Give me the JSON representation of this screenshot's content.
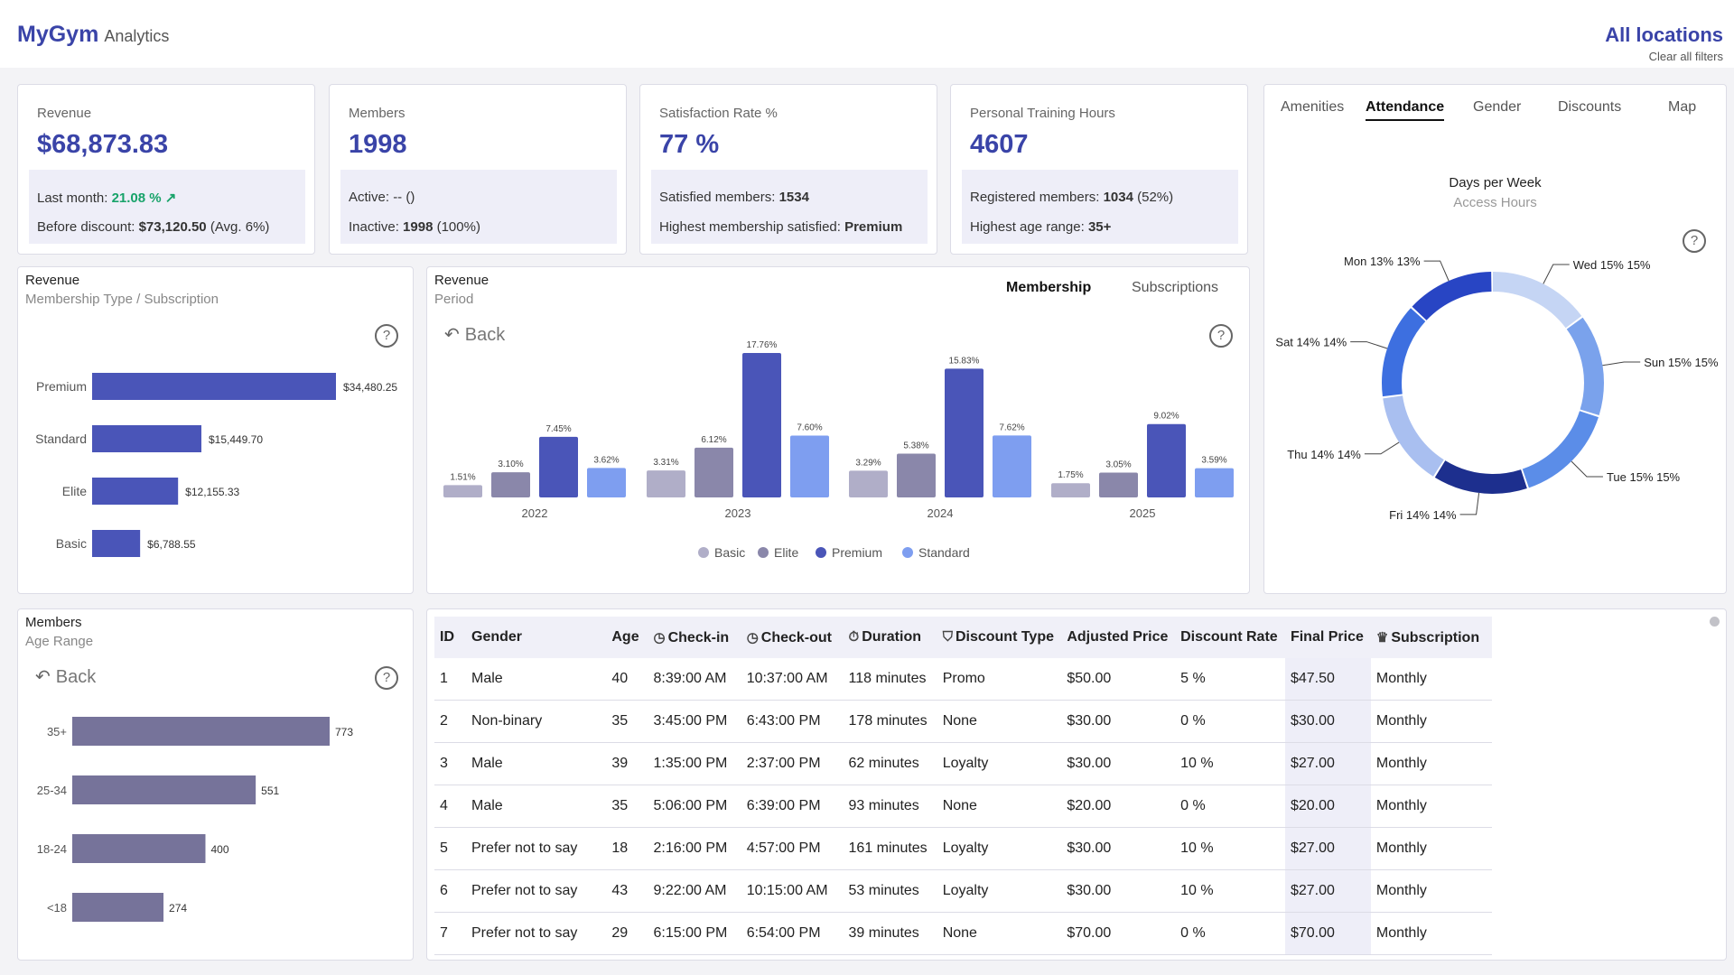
{
  "header": {
    "brand": "MyGym",
    "brand_sub": "Analytics",
    "location": "All locations",
    "clear_filters": "Clear all filters"
  },
  "kpis": {
    "revenue": {
      "label": "Revenue",
      "value": "$68,873.83",
      "last_month_label": "Last month:",
      "last_month_value": "21.08 %",
      "trend_icon": "arrow-up-right-icon",
      "before_discount_label": "Before discount:",
      "before_discount_value": "$73,120.50",
      "before_discount_avg": "(Avg. 6%)"
    },
    "members": {
      "label": "Members",
      "value": "1998",
      "active_label": "Active:",
      "active_value": "-- ()",
      "inactive_label": "Inactive:",
      "inactive_value": "1998",
      "inactive_pct": "(100%)"
    },
    "satisfaction": {
      "label": "Satisfaction Rate %",
      "value": "77 %",
      "satisfied_label": "Satisfied members:",
      "satisfied_value": "1534",
      "highest_label": "Highest membership satisfied:",
      "highest_value": "Premium"
    },
    "training": {
      "label": "Personal Training Hours",
      "value": "4607",
      "registered_label": "Registered members:",
      "registered_value": "1034",
      "registered_pct": "(52%)",
      "age_label": "Highest age range:",
      "age_value": "35+"
    }
  },
  "revenue_type_panel": {
    "title": "Revenue",
    "subtitle": "Membership Type / Subscription",
    "help": "?"
  },
  "revenue_period_panel": {
    "title": "Revenue",
    "subtitle": "Period",
    "back": "Back",
    "help": "?",
    "tabs": [
      "Membership",
      "Subscriptions"
    ],
    "active_tab": "Membership"
  },
  "members_age_panel": {
    "title": "Members",
    "subtitle": "Age Range",
    "back": "Back",
    "help": "?"
  },
  "side_panel": {
    "tabs": [
      "Amenities",
      "Attendance",
      "Gender",
      "Discounts",
      "Map"
    ],
    "active_tab": "Attendance",
    "chart_title": "Days per Week",
    "chart_subtitle": "Access Hours",
    "help": "?"
  },
  "colors": {
    "accent": "#3a44a8",
    "basic": "#b0aec8",
    "elite": "#8a87aa",
    "premium": "#4a55b8",
    "standard": "#7e9ef0",
    "age_bar": "#76739a",
    "green": "#18a36a"
  },
  "chart_data": [
    {
      "type": "bar",
      "orientation": "horizontal",
      "title": "Revenue",
      "subtitle": "Membership Type / Subscription",
      "categories": [
        "Premium",
        "Standard",
        "Elite",
        "Basic"
      ],
      "values": [
        34480.25,
        15449.7,
        12155.33,
        6788.55
      ],
      "value_labels": [
        "$34,480.25",
        "$15,449.70",
        "$12,155.33",
        "$6,788.55"
      ]
    },
    {
      "type": "bar",
      "title": "Revenue",
      "subtitle": "Period",
      "categories": [
        "2022",
        "2023",
        "2024",
        "2025"
      ],
      "series": [
        {
          "name": "Basic",
          "values": [
            1.51,
            3.31,
            3.29,
            1.75
          ],
          "labels": [
            "1.51%",
            "3.31%",
            "3.29%",
            "1.75%"
          ]
        },
        {
          "name": "Elite",
          "values": [
            3.1,
            6.12,
            5.38,
            3.05
          ],
          "labels": [
            "3.10%",
            "6.12%",
            "5.38%",
            "3.05%"
          ]
        },
        {
          "name": "Premium",
          "values": [
            7.45,
            17.76,
            15.83,
            9.02
          ],
          "labels": [
            "7.45%",
            "17.76%",
            "15.83%",
            "9.02%"
          ]
        },
        {
          "name": "Standard",
          "values": [
            3.62,
            7.6,
            7.62,
            3.59
          ],
          "labels": [
            "3.62%",
            "7.60%",
            "7.62%",
            "3.59%"
          ]
        }
      ],
      "legend": "bottom"
    },
    {
      "type": "bar",
      "orientation": "horizontal",
      "title": "Members",
      "subtitle": "Age Range",
      "categories": [
        "35+",
        "25-34",
        "18-24",
        "<18"
      ],
      "values": [
        773,
        551,
        400,
        274
      ]
    },
    {
      "type": "pie",
      "donut": true,
      "title": "Days per Week",
      "subtitle": "Access Hours",
      "slices": [
        {
          "label": "Wed 15% 15%",
          "value": 15
        },
        {
          "label": "Sun 15% 15%",
          "value": 15
        },
        {
          "label": "Tue 15% 15%",
          "value": 15
        },
        {
          "label": "Fri 14% 14%",
          "value": 14
        },
        {
          "label": "Thu 14% 14%",
          "value": 14
        },
        {
          "label": "Sat 14% 14%",
          "value": 14
        },
        {
          "label": "Mon 13% 13%",
          "value": 13
        }
      ]
    }
  ],
  "table": {
    "headers": [
      {
        "label": "ID",
        "icon": ""
      },
      {
        "label": "Gender",
        "icon": ""
      },
      {
        "label": "Age",
        "icon": ""
      },
      {
        "label": "Check-in",
        "icon": "clock-icon"
      },
      {
        "label": "Check-out",
        "icon": "clock-icon"
      },
      {
        "label": "Duration",
        "icon": "stopwatch-icon"
      },
      {
        "label": "Discount Type",
        "icon": "shield-icon"
      },
      {
        "label": "Adjusted Price",
        "icon": ""
      },
      {
        "label": "Discount Rate",
        "icon": ""
      },
      {
        "label": "Final Price",
        "icon": ""
      },
      {
        "label": "Subscription",
        "icon": "subscription-icon"
      }
    ],
    "sort_indicator": "▲",
    "rows": [
      [
        "1",
        "Male",
        "40",
        "8:39:00 AM",
        "10:37:00 AM",
        "118 minutes",
        "Promo",
        "$50.00",
        "5 %",
        "$47.50",
        "Monthly"
      ],
      [
        "2",
        "Non-binary",
        "35",
        "3:45:00 PM",
        "6:43:00 PM",
        "178 minutes",
        "None",
        "$30.00",
        "0 %",
        "$30.00",
        "Monthly"
      ],
      [
        "3",
        "Male",
        "39",
        "1:35:00 PM",
        "2:37:00 PM",
        "62 minutes",
        "Loyalty",
        "$30.00",
        "10 %",
        "$27.00",
        "Monthly"
      ],
      [
        "4",
        "Male",
        "35",
        "5:06:00 PM",
        "6:39:00 PM",
        "93 minutes",
        "None",
        "$20.00",
        "0 %",
        "$20.00",
        "Monthly"
      ],
      [
        "5",
        "Prefer not to say",
        "18",
        "2:16:00 PM",
        "4:57:00 PM",
        "161 minutes",
        "Loyalty",
        "$30.00",
        "10 %",
        "$27.00",
        "Monthly"
      ],
      [
        "6",
        "Prefer not to say",
        "43",
        "9:22:00 AM",
        "10:15:00 AM",
        "53 minutes",
        "Loyalty",
        "$30.00",
        "10 %",
        "$27.00",
        "Monthly"
      ],
      [
        "7",
        "Prefer not to say",
        "29",
        "6:15:00 PM",
        "6:54:00 PM",
        "39 minutes",
        "None",
        "$70.00",
        "0 %",
        "$70.00",
        "Monthly"
      ]
    ]
  }
}
